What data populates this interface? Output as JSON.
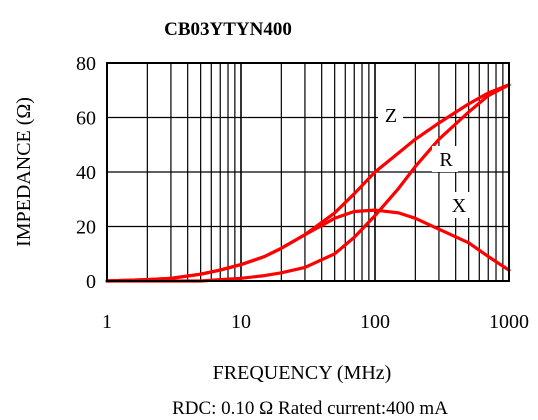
{
  "chart_data": {
    "type": "line",
    "title": "CB03YTYN400",
    "xlabel": "FREQUENCY (MHz)",
    "ylabel": "IMPEDANCE (Ω)",
    "x_scale": "log",
    "xlim": [
      1,
      1000
    ],
    "ylim": [
      0,
      80
    ],
    "x_ticks": [
      "1",
      "10",
      "100",
      "1000"
    ],
    "y_ticks": [
      "0",
      "20",
      "40",
      "60",
      "80"
    ],
    "grid": true,
    "footer": "RDC: 0.10 Ω Rated current:400 mA",
    "series_color": "#ff0000",
    "series": [
      {
        "name": "Z",
        "x": [
          1,
          2,
          3,
          5,
          7,
          10,
          15,
          20,
          30,
          50,
          70,
          100,
          150,
          200,
          300,
          500,
          700,
          1000
        ],
        "y": [
          0,
          0.5,
          1,
          2.5,
          4,
          6,
          9,
          12,
          17,
          25,
          32,
          40,
          47,
          52,
          58,
          65,
          69,
          72
        ]
      },
      {
        "name": "R",
        "x": [
          1,
          5,
          7,
          10,
          15,
          20,
          30,
          50,
          70,
          100,
          150,
          200,
          300,
          500,
          700,
          1000
        ],
        "y": [
          0,
          0,
          0.5,
          1,
          2,
          3,
          5,
          10,
          16,
          24,
          34,
          42,
          52,
          62,
          68,
          72
        ]
      },
      {
        "name": "X",
        "x": [
          1,
          2,
          3,
          5,
          7,
          10,
          15,
          20,
          30,
          50,
          70,
          100,
          150,
          200,
          300,
          500,
          700,
          1000
        ],
        "y": [
          0,
          0.5,
          1,
          2.5,
          4,
          6,
          9,
          12,
          17,
          23,
          25.5,
          26,
          25,
          23,
          19,
          14,
          9,
          4
        ]
      }
    ]
  }
}
